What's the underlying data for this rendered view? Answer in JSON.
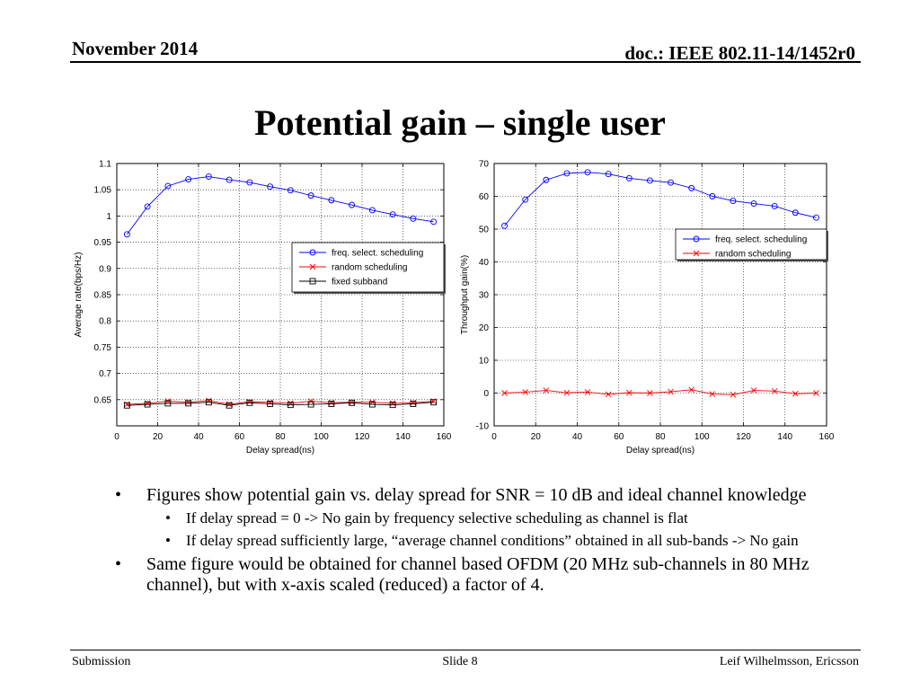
{
  "header": {
    "date": "November 2014",
    "doc": "doc.: IEEE 802.11-14/1452r0"
  },
  "title": "Potential gain – single user",
  "chart_data": [
    {
      "type": "line",
      "xlabel": "Delay spread(ns)",
      "ylabel": "Average rate(bps/Hz)",
      "xlim": [
        0,
        160
      ],
      "ylim": [
        0.6,
        1.1
      ],
      "xticks": [
        "0",
        "20",
        "40",
        "60",
        "80",
        "100",
        "120",
        "140",
        "160"
      ],
      "yticks": [
        "0.65",
        "0.7",
        "0.75",
        "0.8",
        "0.85",
        "0.9",
        "0.95",
        "1",
        "1.05",
        "1.1"
      ],
      "grid": true,
      "legend": "upper-right",
      "series": [
        {
          "name": "freq. select. scheduling",
          "color": "#0000ff",
          "marker": "circle",
          "x": [
            5,
            15,
            25,
            35,
            45,
            55,
            65,
            75,
            85,
            95,
            105,
            115,
            125,
            135,
            145,
            155
          ],
          "y": [
            0.965,
            1.018,
            1.057,
            1.07,
            1.075,
            1.069,
            1.064,
            1.056,
            1.049,
            1.039,
            1.03,
            1.021,
            1.011,
            1.003,
            0.995,
            0.989
          ]
        },
        {
          "name": "random scheduling",
          "color": "#ff0000",
          "marker": "x",
          "x": [
            5,
            15,
            25,
            35,
            45,
            55,
            65,
            75,
            85,
            95,
            105,
            115,
            125,
            135,
            145,
            155
          ],
          "y": [
            0.641,
            0.643,
            0.647,
            0.645,
            0.648,
            0.641,
            0.646,
            0.645,
            0.643,
            0.647,
            0.644,
            0.645,
            0.645,
            0.643,
            0.644,
            0.647
          ]
        },
        {
          "name": "fixed subband",
          "color": "#000000",
          "marker": "square",
          "x": [
            5,
            15,
            25,
            35,
            45,
            55,
            65,
            75,
            85,
            95,
            105,
            115,
            125,
            135,
            145,
            155
          ],
          "y": [
            0.639,
            0.641,
            0.643,
            0.643,
            0.645,
            0.639,
            0.644,
            0.642,
            0.64,
            0.641,
            0.642,
            0.644,
            0.641,
            0.64,
            0.642,
            0.645
          ]
        }
      ]
    },
    {
      "type": "line",
      "xlabel": "Delay spread(ns)",
      "ylabel": "Throughput gain(%)",
      "xlim": [
        0,
        160
      ],
      "ylim": [
        -10,
        70
      ],
      "xticks": [
        "0",
        "20",
        "40",
        "60",
        "80",
        "100",
        "120",
        "140",
        "160"
      ],
      "yticks": [
        "-10",
        "0",
        "10",
        "20",
        "30",
        "40",
        "50",
        "60",
        "70"
      ],
      "grid": true,
      "legend": "upper-right",
      "series": [
        {
          "name": "freq. select. scheduling",
          "color": "#0000ff",
          "marker": "circle",
          "x": [
            5,
            15,
            25,
            35,
            45,
            55,
            65,
            75,
            85,
            95,
            105,
            115,
            125,
            135,
            145,
            155
          ],
          "y": [
            51,
            59,
            65,
            67,
            67.3,
            66.8,
            65.5,
            64.8,
            64.2,
            62.5,
            60,
            58.6,
            57.8,
            57,
            55,
            53.5
          ]
        },
        {
          "name": "random scheduling",
          "color": "#ff0000",
          "marker": "x",
          "x": [
            5,
            15,
            25,
            35,
            45,
            55,
            65,
            75,
            85,
            95,
            105,
            115,
            125,
            135,
            145,
            155
          ],
          "y": [
            0,
            0.3,
            0.8,
            0.1,
            0.3,
            -0.4,
            0.1,
            0,
            0.4,
            1,
            -0.3,
            -0.5,
            0.8,
            0.6,
            -0.2,
            0
          ]
        }
      ]
    }
  ],
  "bullets": [
    {
      "level": 1,
      "text": "Figures show potential gain vs. delay spread  for SNR = 10 dB and ideal channel knowledge"
    },
    {
      "level": 2,
      "text": "If delay spread = 0 -> No gain by frequency selective scheduling as channel is flat"
    },
    {
      "level": 2,
      "text": "If delay spread  sufficiently large, “average channel conditions” obtained in all sub-bands -> No gain"
    },
    {
      "level": 1,
      "text": "Same figure would be obtained for channel based OFDM (20 MHz sub-channels in 80 MHz channel), but with x-axis scaled (reduced) a factor of 4."
    }
  ],
  "bullet_glyph": "•",
  "footer": {
    "left": "Submission",
    "center": "Slide 8",
    "right": "Leif Wilhelmsson, Ericsson"
  }
}
